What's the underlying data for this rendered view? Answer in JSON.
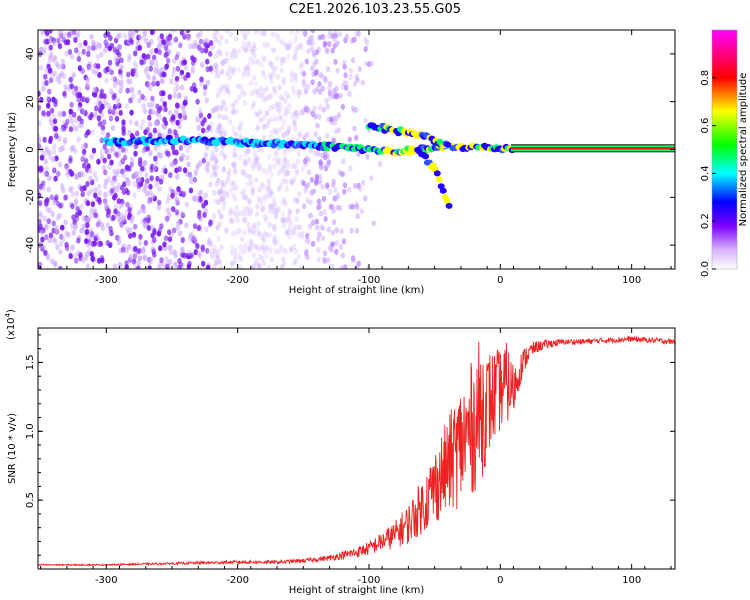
{
  "page_title": "C2E1.2026.103.23.55.G05",
  "chart_data": [
    {
      "type": "heatmap",
      "title": "C2E1.2026.103.23.55.G05",
      "xlabel": "Height of straight line (km)",
      "ylabel": "Frequency (Hz)",
      "xlim": [
        -352,
        133
      ],
      "ylim": [
        -50,
        50
      ],
      "x_ticks": [
        -300,
        -200,
        -100,
        0,
        100
      ],
      "y_ticks": [
        -40,
        -20,
        0,
        20,
        40
      ],
      "colorbar": {
        "label": "Normalized spectral amplitude",
        "range": [
          0,
          1
        ],
        "ticks": [
          0.0,
          0.2,
          0.4,
          0.6,
          0.8
        ],
        "tick_labels": [
          "0.0",
          "0.2",
          "0.4",
          "0.6",
          "0.8"
        ],
        "colormap": [
          "#ffffff",
          "#7b00ff",
          "#0000ff",
          "#00ffff",
          "#00ff00",
          "#ffff00",
          "#ff0000",
          "#ff00ff"
        ]
      },
      "ridges": [
        {
          "name": "main",
          "points": [
            [
              -300,
              3
            ],
            [
              -250,
              4
            ],
            [
              -200,
              3
            ],
            [
              -150,
              2
            ],
            [
              -120,
              1
            ],
            [
              -100,
              0
            ],
            [
              -80,
              -1
            ],
            [
              -60,
              0
            ],
            [
              -40,
              1
            ],
            [
              -20,
              1
            ],
            [
              0,
              0.5
            ],
            [
              133,
              0.5
            ]
          ]
        },
        {
          "name": "upper",
          "points": [
            [
              -100,
              10
            ],
            [
              -80,
              8
            ],
            [
              -60,
              6
            ],
            [
              -45,
              3
            ],
            [
              -40,
              1
            ]
          ]
        },
        {
          "name": "lower",
          "points": [
            [
              -60,
              -2
            ],
            [
              -50,
              -8
            ],
            [
              -45,
              -15
            ],
            [
              -40,
              -22
            ],
            [
              -38,
              -27
            ]
          ]
        }
      ],
      "noise_region_km": [
        -352,
        -130
      ]
    },
    {
      "type": "line",
      "xlabel": "Height of straight line (km)",
      "ylabel": "SNR (10 * v/v)",
      "y_multiplier": "(x10",
      "y_exponent": "4",
      "y_multiplier_close": ")",
      "xlim": [
        -352,
        133
      ],
      "ylim": [
        0,
        1.75
      ],
      "x_ticks": [
        -300,
        -200,
        -100,
        0,
        100
      ],
      "y_ticks": [
        0.5,
        1.0,
        1.5
      ],
      "y_tick_labels": [
        "0.5",
        "1.0",
        "1.5"
      ],
      "color": "#ee2222",
      "series": [
        {
          "name": "SNR",
          "x": [
            -352,
            -300,
            -250,
            -200,
            -170,
            -150,
            -130,
            -110,
            -100,
            -90,
            -80,
            -70,
            -60,
            -50,
            -40,
            -30,
            -20,
            -15,
            -10,
            -5,
            0,
            5,
            10,
            15,
            20,
            25,
            30,
            40,
            50,
            60,
            80,
            100,
            133
          ],
          "y": [
            0.03,
            0.03,
            0.04,
            0.05,
            0.05,
            0.06,
            0.08,
            0.12,
            0.15,
            0.2,
            0.25,
            0.33,
            0.45,
            0.6,
            0.75,
            0.9,
            1.05,
            1.15,
            1.2,
            1.25,
            1.3,
            1.35,
            1.3,
            1.45,
            1.55,
            1.6,
            1.62,
            1.64,
            1.65,
            1.65,
            1.66,
            1.67,
            1.65
          ],
          "noise": [
            0.005,
            0.005,
            0.008,
            0.012,
            0.012,
            0.015,
            0.02,
            0.04,
            0.05,
            0.07,
            0.1,
            0.15,
            0.2,
            0.28,
            0.35,
            0.45,
            0.5,
            0.55,
            0.4,
            0.35,
            0.3,
            0.3,
            0.2,
            0.12,
            0.08,
            0.05,
            0.04,
            0.03,
            0.02,
            0.02,
            0.02,
            0.02,
            0.02
          ]
        }
      ]
    }
  ]
}
